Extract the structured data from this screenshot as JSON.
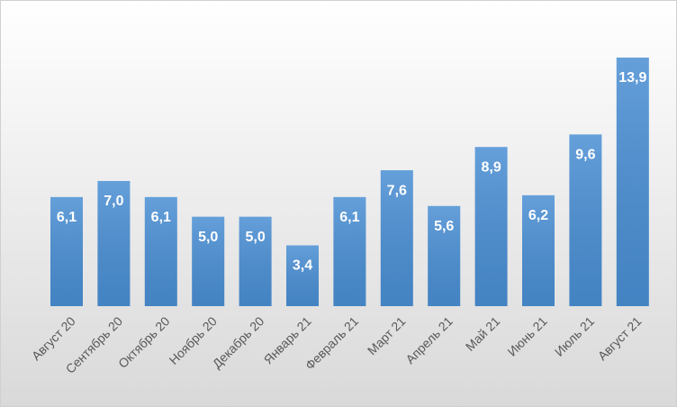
{
  "chart_data": {
    "type": "bar",
    "categories": [
      "Август 20",
      "Сентябрь 20",
      "Октябрь 20",
      "Ноябрь 20",
      "Декабрь 20",
      "Январь 21",
      "Февраль 21",
      "Март 21",
      "Апрель 21",
      "Май 21",
      "Июнь 21",
      "Июль 21",
      "Август 21"
    ],
    "values": [
      6.1,
      7.0,
      6.1,
      5.0,
      5.0,
      3.4,
      6.1,
      7.6,
      5.6,
      8.9,
      6.2,
      9.6,
      13.9
    ],
    "value_labels": [
      "6,1",
      "7,0",
      "6,1",
      "5,0",
      "5,0",
      "3,4",
      "6,1",
      "7,6",
      "5,6",
      "8,9",
      "6,2",
      "9,6",
      "13,9"
    ],
    "color": "#4a8fd4"
  }
}
